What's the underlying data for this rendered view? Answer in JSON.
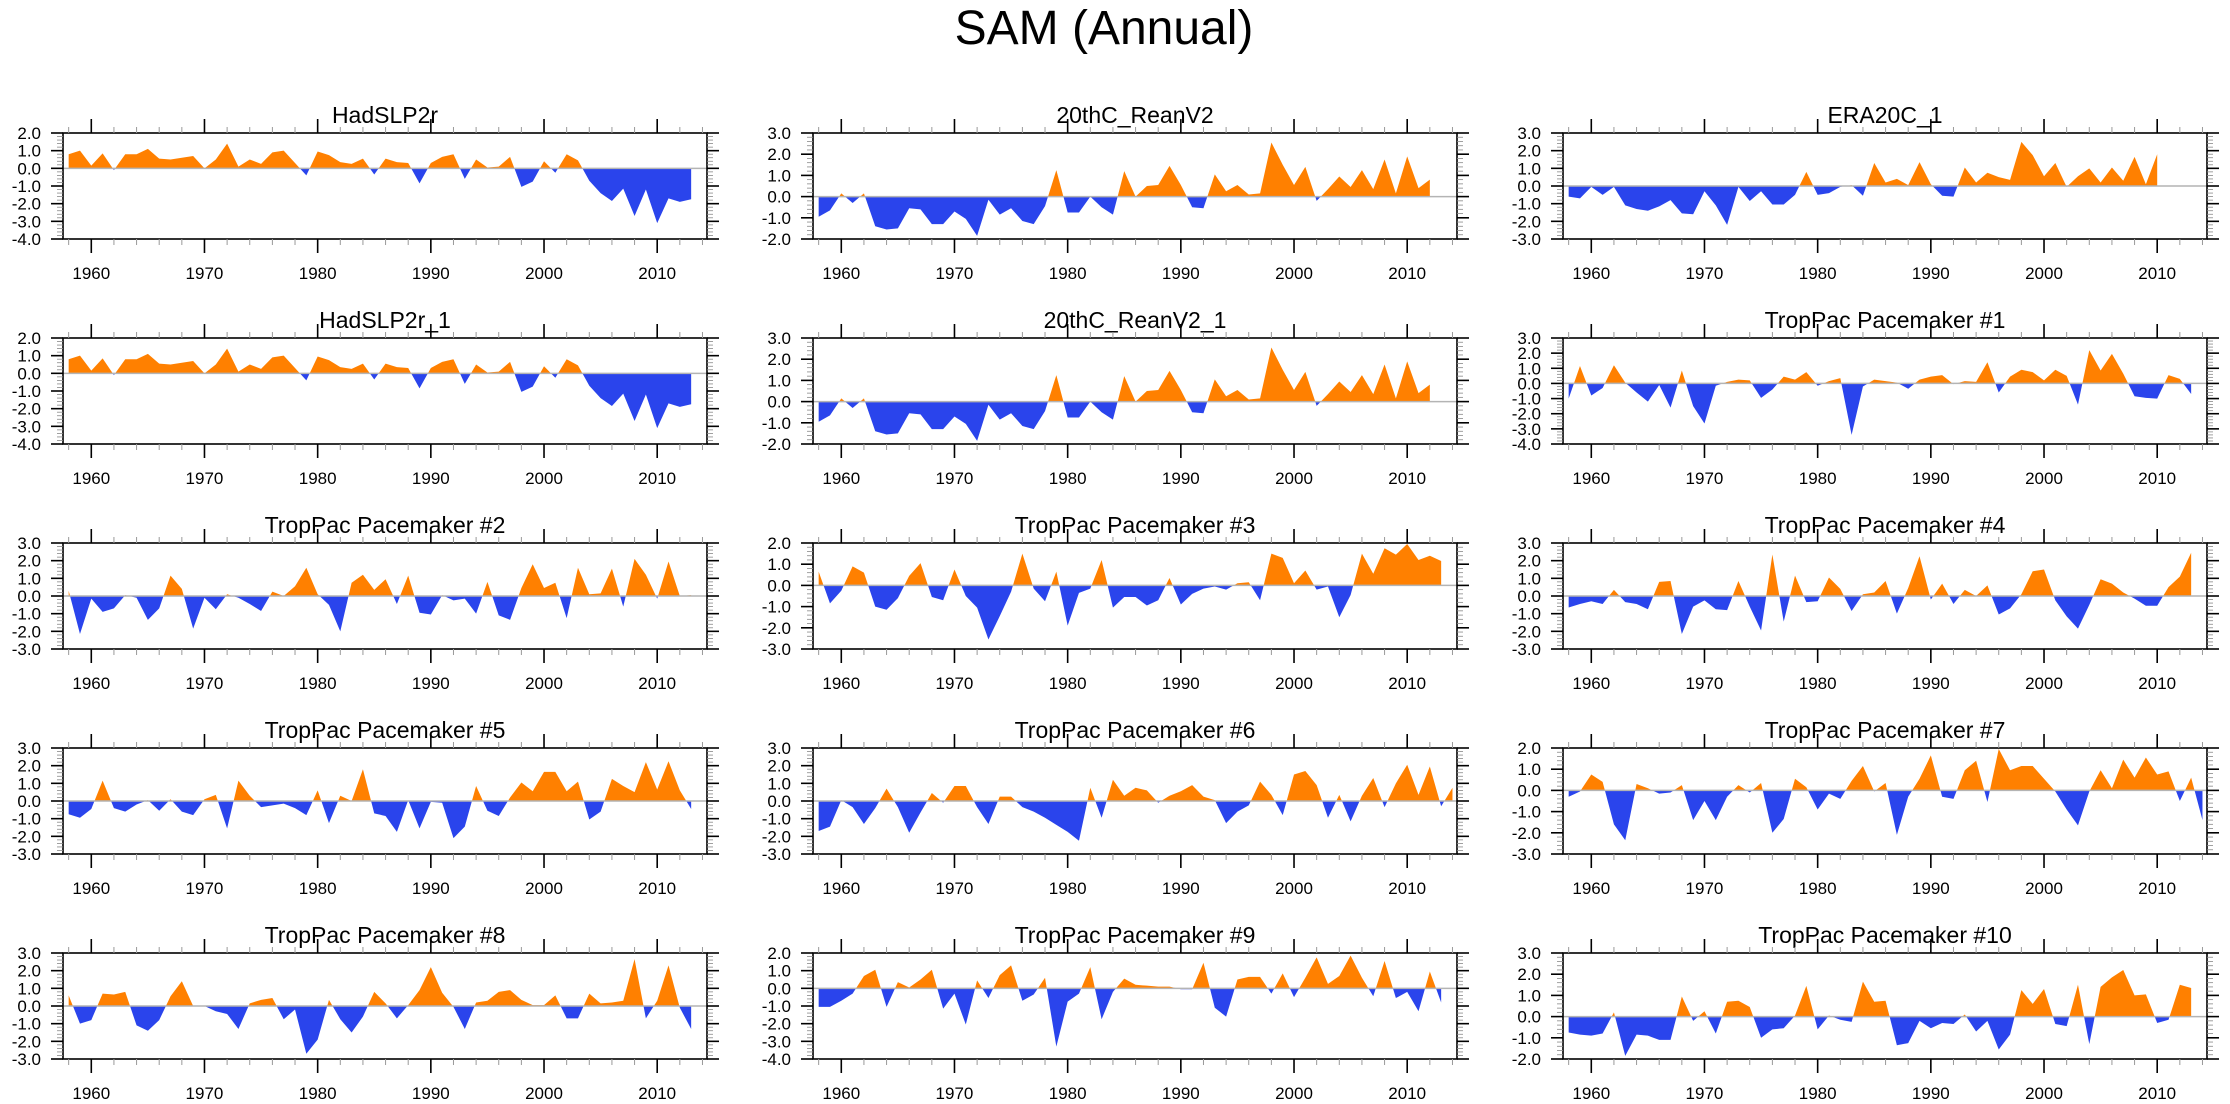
{
  "figure": {
    "title": "SAM (Annual)",
    "colors": {
      "positive": "#ff8000",
      "negative": "#2a44ec",
      "zero_line": "#b4b4b4",
      "axis": "#000000"
    }
  },
  "chart_data": {
    "type": "area",
    "title": "SAM (Annual)",
    "layout": "5 rows x 3 columns",
    "xlabel": "",
    "ylabel": "",
    "grid": false,
    "legend": "none",
    "xlim": [
      1957.5,
      2014.4
    ],
    "xticks": [
      1960,
      1970,
      1980,
      1990,
      2000,
      2010
    ],
    "panels": [
      {
        "title": "HadSLP2r",
        "start_year": 1958,
        "ylim": [
          -4,
          2
        ],
        "yticks": [
          "-4.0",
          "-3.0",
          "-2.0",
          "-1.0",
          "0.0",
          "1.0",
          "2.0"
        ],
        "values": [
          0.8,
          1.0,
          0.15,
          0.85,
          -0.1,
          0.8,
          0.8,
          1.1,
          0.55,
          0.5,
          0.6,
          0.7,
          0.0,
          0.5,
          1.4,
          0.1,
          0.5,
          0.25,
          0.9,
          1.0,
          0.3,
          -0.4,
          0.95,
          0.75,
          0.35,
          0.25,
          0.55,
          -0.35,
          0.55,
          0.35,
          0.3,
          -0.85,
          0.3,
          0.65,
          0.8,
          -0.6,
          0.5,
          0.05,
          0.1,
          0.65,
          -1.05,
          -0.75,
          0.4,
          -0.25,
          0.8,
          0.45,
          -0.7,
          -1.4,
          -1.85,
          -1.15,
          -2.7,
          -1.2,
          -3.1,
          -1.7,
          -1.9,
          -1.75
        ]
      },
      {
        "title": "20thC_ReanV2",
        "start_year": 1958,
        "ylim": [
          -2,
          3
        ],
        "yticks": [
          "-2.0",
          "-1.0",
          "0.0",
          "1.0",
          "2.0",
          "3.0"
        ],
        "values": [
          -0.95,
          -0.65,
          0.15,
          -0.3,
          0.15,
          -1.4,
          -1.55,
          -1.5,
          -0.55,
          -0.6,
          -1.3,
          -1.3,
          -0.7,
          -1.05,
          -1.85,
          -0.15,
          -0.85,
          -0.55,
          -1.15,
          -1.3,
          -0.45,
          1.25,
          -0.75,
          -0.75,
          0.0,
          -0.5,
          -0.85,
          1.2,
          0.0,
          0.5,
          0.55,
          1.45,
          0.55,
          -0.5,
          -0.55,
          1.05,
          0.25,
          0.55,
          0.1,
          0.15,
          2.55,
          1.5,
          0.55,
          1.4,
          -0.2,
          0.35,
          0.95,
          0.45,
          1.25,
          0.35,
          1.75,
          0.15,
          1.9,
          0.4,
          0.8
        ]
      },
      {
        "title": "ERA20C_1",
        "start_year": 1958,
        "ylim": [
          -3,
          3
        ],
        "yticks": [
          "-3.0",
          "-2.0",
          "-1.0",
          "0.0",
          "1.0",
          "2.0",
          "3.0"
        ],
        "values": [
          -0.6,
          -0.7,
          -0.05,
          -0.5,
          -0.05,
          -1.1,
          -1.3,
          -1.4,
          -1.15,
          -0.8,
          -1.55,
          -1.6,
          -0.3,
          -1.1,
          -2.2,
          -0.05,
          -0.85,
          -0.3,
          -1.05,
          -1.05,
          -0.5,
          0.8,
          -0.5,
          -0.4,
          -0.05,
          0.05,
          -0.55,
          1.3,
          0.2,
          0.4,
          0.05,
          1.35,
          0.1,
          -0.55,
          -0.6,
          1.05,
          0.2,
          0.75,
          0.5,
          0.35,
          2.5,
          1.75,
          0.55,
          1.3,
          -0.05,
          0.55,
          1.0,
          0.2,
          1.05,
          0.3,
          1.65,
          0.1,
          1.8
        ]
      },
      {
        "title": "HadSLP2r_1",
        "start_year": 1958,
        "ylim": [
          -4,
          2
        ],
        "yticks": [
          "-4.0",
          "-3.0",
          "-2.0",
          "-1.0",
          "0.0",
          "1.0",
          "2.0"
        ],
        "values": [
          0.8,
          1.0,
          0.15,
          0.85,
          -0.1,
          0.8,
          0.8,
          1.1,
          0.55,
          0.5,
          0.6,
          0.7,
          0.0,
          0.5,
          1.4,
          0.1,
          0.5,
          0.25,
          0.9,
          1.0,
          0.3,
          -0.4,
          0.95,
          0.75,
          0.35,
          0.25,
          0.55,
          -0.35,
          0.55,
          0.35,
          0.3,
          -0.85,
          0.3,
          0.65,
          0.8,
          -0.6,
          0.5,
          0.05,
          0.1,
          0.65,
          -1.05,
          -0.75,
          0.4,
          -0.25,
          0.8,
          0.45,
          -0.7,
          -1.4,
          -1.85,
          -1.15,
          -2.7,
          -1.2,
          -3.1,
          -1.7,
          -1.9,
          -1.75
        ]
      },
      {
        "title": "20thC_ReanV2_1",
        "start_year": 1958,
        "ylim": [
          -2,
          3
        ],
        "yticks": [
          "-2.0",
          "-1.0",
          "0.0",
          "1.0",
          "2.0",
          "3.0"
        ],
        "values": [
          -0.95,
          -0.65,
          0.15,
          -0.3,
          0.15,
          -1.4,
          -1.55,
          -1.5,
          -0.55,
          -0.6,
          -1.3,
          -1.3,
          -0.7,
          -1.05,
          -1.85,
          -0.15,
          -0.85,
          -0.55,
          -1.15,
          -1.3,
          -0.45,
          1.25,
          -0.75,
          -0.75,
          0.0,
          -0.5,
          -0.85,
          1.2,
          0.0,
          0.5,
          0.55,
          1.45,
          0.55,
          -0.5,
          -0.55,
          1.05,
          0.25,
          0.55,
          0.1,
          0.15,
          2.55,
          1.5,
          0.55,
          1.4,
          -0.2,
          0.35,
          0.95,
          0.45,
          1.25,
          0.35,
          1.75,
          0.15,
          1.9,
          0.4,
          0.8
        ]
      },
      {
        "title": "TropPac Pacemaker #1",
        "start_year": 1958,
        "ylim": [
          -4,
          3
        ],
        "yticks": [
          "-4.0",
          "-3.0",
          "-2.0",
          "-1.0",
          "0.0",
          "1.0",
          "2.0",
          "3.0"
        ],
        "values": [
          -1.0,
          1.15,
          -0.8,
          -0.3,
          1.2,
          0.05,
          -0.6,
          -1.2,
          -0.1,
          -1.6,
          0.85,
          -1.5,
          -2.65,
          -0.15,
          0.1,
          0.25,
          0.2,
          -0.95,
          -0.4,
          0.45,
          0.25,
          0.75,
          -0.15,
          0.15,
          0.35,
          -3.4,
          -0.2,
          0.25,
          0.15,
          0.05,
          -0.35,
          0.25,
          0.45,
          0.55,
          -0.05,
          0.15,
          0.1,
          1.4,
          -0.6,
          0.45,
          0.9,
          0.75,
          0.2,
          0.9,
          0.5,
          -1.4,
          2.2,
          0.85,
          1.95,
          0.65,
          -0.85,
          -0.95,
          -1.0,
          0.55,
          0.3,
          -0.7
        ]
      },
      {
        "title": "TropPac Pacemaker #2",
        "start_year": 1958,
        "ylim": [
          -3,
          3
        ],
        "yticks": [
          "-3.0",
          "-2.0",
          "-1.0",
          "0.0",
          "1.0",
          "2.0",
          "3.0"
        ],
        "values": [
          0.3,
          -2.15,
          -0.15,
          -0.9,
          -0.7,
          0.05,
          -0.1,
          -1.35,
          -0.7,
          1.15,
          0.4,
          -1.85,
          -0.1,
          -0.75,
          0.1,
          -0.1,
          -0.45,
          -0.85,
          0.25,
          0.0,
          0.55,
          1.6,
          0.1,
          -0.5,
          -2.0,
          0.75,
          1.2,
          0.35,
          0.95,
          -0.45,
          1.15,
          -0.95,
          -1.05,
          0.05,
          -0.25,
          -0.15,
          -1.0,
          0.8,
          -1.1,
          -1.35,
          0.45,
          1.8,
          0.45,
          0.75,
          -1.25,
          1.6,
          0.1,
          0.15,
          1.55,
          -0.6,
          2.1,
          1.2,
          -0.15,
          1.95,
          0.0,
          0.05
        ]
      },
      {
        "title": "TropPac Pacemaker #3",
        "start_year": 1958,
        "ylim": [
          -3,
          2
        ],
        "yticks": [
          "-3.0",
          "-2.0",
          "-1.0",
          "0.0",
          "1.0",
          "2.0"
        ],
        "values": [
          0.65,
          -0.85,
          -0.25,
          0.9,
          0.6,
          -1.0,
          -1.15,
          -0.6,
          0.45,
          1.05,
          -0.55,
          -0.7,
          0.75,
          -0.5,
          -1.05,
          -2.55,
          -1.45,
          -0.3,
          1.5,
          -0.15,
          -0.75,
          0.65,
          -1.9,
          -0.35,
          -0.15,
          1.2,
          -1.05,
          -0.55,
          -0.55,
          -0.95,
          -0.7,
          0.35,
          -0.9,
          -0.4,
          -0.15,
          -0.05,
          -0.2,
          0.1,
          0.15,
          -0.7,
          1.5,
          1.3,
          0.1,
          0.7,
          -0.2,
          -0.05,
          -1.5,
          -0.45,
          1.5,
          0.55,
          1.75,
          1.45,
          1.95,
          1.2,
          1.4,
          1.15
        ]
      },
      {
        "title": "TropPac Pacemaker #4",
        "start_year": 1958,
        "ylim": [
          -3,
          3
        ],
        "yticks": [
          "-3.0",
          "-2.0",
          "-1.0",
          "0.0",
          "1.0",
          "2.0",
          "3.0"
        ],
        "values": [
          -0.65,
          -0.45,
          -0.3,
          -0.45,
          0.35,
          -0.35,
          -0.45,
          -0.75,
          0.8,
          0.85,
          -2.15,
          -0.6,
          -0.25,
          -0.75,
          -0.8,
          0.85,
          -0.6,
          -1.95,
          2.35,
          -1.45,
          1.15,
          -0.35,
          -0.3,
          1.05,
          0.4,
          -0.85,
          0.1,
          0.2,
          0.85,
          -1.0,
          0.45,
          2.25,
          -0.2,
          0.7,
          -0.45,
          0.35,
          0.0,
          0.6,
          -1.05,
          -0.7,
          0.1,
          1.4,
          1.5,
          -0.25,
          -1.15,
          -1.85,
          -0.5,
          0.95,
          0.7,
          0.2,
          -0.15,
          -0.55,
          -0.55,
          0.5,
          1.1,
          2.45
        ]
      },
      {
        "title": "TropPac Pacemaker #5",
        "start_year": 1958,
        "ylim": [
          -3,
          3
        ],
        "yticks": [
          "-3.0",
          "-2.0",
          "-1.0",
          "0.0",
          "1.0",
          "2.0",
          "3.0"
        ],
        "values": [
          -0.75,
          -0.95,
          -0.45,
          1.15,
          -0.4,
          -0.6,
          -0.2,
          0.05,
          -0.55,
          0.1,
          -0.6,
          -0.8,
          0.1,
          0.35,
          -1.55,
          1.15,
          0.3,
          -0.35,
          -0.25,
          -0.15,
          -0.4,
          -0.8,
          0.6,
          -1.25,
          0.3,
          0.0,
          1.8,
          -0.7,
          -0.85,
          -1.75,
          0.05,
          -1.55,
          -0.05,
          -0.1,
          -2.1,
          -1.45,
          0.85,
          -0.55,
          -0.85,
          0.2,
          1.05,
          0.55,
          1.65,
          1.65,
          0.55,
          1.1,
          -1.05,
          -0.6,
          1.25,
          0.85,
          0.5,
          2.2,
          0.65,
          2.25,
          0.6,
          -0.45
        ]
      },
      {
        "title": "TropPac Pacemaker #6",
        "start_year": 1958,
        "ylim": [
          -3,
          3
        ],
        "yticks": [
          "-3.0",
          "-2.0",
          "-1.0",
          "0.0",
          "1.0",
          "2.0",
          "3.0"
        ],
        "values": [
          -1.7,
          -1.45,
          0.05,
          -0.35,
          -1.3,
          -0.4,
          0.7,
          -0.35,
          -1.8,
          -0.65,
          0.45,
          -0.1,
          0.85,
          0.85,
          -0.35,
          -1.3,
          0.25,
          0.25,
          -0.35,
          -0.6,
          -0.95,
          -1.35,
          -1.75,
          -2.25,
          0.75,
          -0.95,
          1.2,
          0.3,
          0.75,
          0.6,
          -0.1,
          0.3,
          0.55,
          0.9,
          0.25,
          0.05,
          -1.25,
          -0.6,
          -0.25,
          1.1,
          0.35,
          -0.8,
          1.5,
          1.7,
          0.9,
          -0.95,
          0.35,
          -1.15,
          0.3,
          1.3,
          -0.35,
          1.0,
          2.05,
          0.35,
          1.95,
          -0.3,
          0.75
        ]
      },
      {
        "title": "TropPac Pacemaker #7",
        "start_year": 1958,
        "ylim": [
          -3,
          2
        ],
        "yticks": [
          "-3.0",
          "-2.0",
          "-1.0",
          "0.0",
          "1.0",
          "2.0"
        ],
        "values": [
          -0.3,
          -0.05,
          0.75,
          0.4,
          -1.6,
          -2.35,
          0.3,
          0.1,
          -0.15,
          -0.1,
          0.25,
          -1.4,
          -0.5,
          -1.4,
          -0.3,
          0.25,
          -0.1,
          0.35,
          -2.0,
          -1.35,
          0.55,
          0.15,
          -0.9,
          -0.15,
          -0.4,
          0.45,
          1.15,
          -0.05,
          0.35,
          -2.1,
          -0.3,
          0.55,
          1.65,
          -0.3,
          -0.4,
          0.95,
          1.4,
          -0.55,
          1.95,
          0.95,
          1.15,
          1.15,
          0.55,
          -0.05,
          -0.9,
          -1.65,
          -0.05,
          0.95,
          0.1,
          1.45,
          0.6,
          1.55,
          0.75,
          0.9,
          -0.5,
          0.6,
          -1.4
        ]
      },
      {
        "title": "TropPac Pacemaker #8",
        "start_year": 1958,
        "ylim": [
          -3,
          3
        ],
        "yticks": [
          "-3.0",
          "-2.0",
          "-1.0",
          "0.0",
          "1.0",
          "2.0",
          "3.0"
        ],
        "values": [
          0.6,
          -1.0,
          -0.8,
          0.7,
          0.65,
          0.8,
          -1.1,
          -1.4,
          -0.8,
          0.55,
          1.4,
          0.0,
          0.0,
          -0.3,
          -0.45,
          -1.3,
          0.15,
          0.35,
          0.45,
          -0.75,
          -0.2,
          -2.7,
          -1.9,
          0.35,
          -0.75,
          -1.5,
          -0.6,
          0.8,
          0.15,
          -0.7,
          0.05,
          0.9,
          2.2,
          0.75,
          -0.05,
          -1.3,
          0.2,
          0.3,
          0.8,
          0.9,
          0.35,
          0.05,
          0.05,
          0.6,
          -0.7,
          -0.7,
          0.7,
          0.15,
          0.2,
          0.3,
          2.65,
          -0.7,
          0.3,
          2.3,
          -0.1,
          -1.3
        ]
      },
      {
        "title": "TropPac Pacemaker #9",
        "start_year": 1958,
        "ylim": [
          -4,
          2
        ],
        "yticks": [
          "-4.0",
          "-3.0",
          "-2.0",
          "-1.0",
          "0.0",
          "1.0",
          "2.0"
        ],
        "values": [
          -1.05,
          -1.05,
          -0.7,
          -0.3,
          0.7,
          1.05,
          -1.05,
          0.35,
          0.05,
          0.5,
          1.05,
          -1.15,
          -0.3,
          -2.05,
          0.45,
          -0.55,
          0.75,
          1.3,
          -0.7,
          -0.35,
          0.6,
          -3.3,
          -0.75,
          -0.3,
          1.2,
          -1.75,
          -0.2,
          0.55,
          0.2,
          0.15,
          0.1,
          0.1,
          -0.05,
          -0.05,
          1.45,
          -1.1,
          -1.6,
          0.5,
          0.65,
          0.65,
          -0.3,
          0.85,
          -0.5,
          0.6,
          1.75,
          0.25,
          0.7,
          1.85,
          0.6,
          -0.45,
          1.55,
          -0.55,
          -0.2,
          -1.3,
          0.95,
          -0.8
        ]
      },
      {
        "title": "TropPac Pacemaker #10",
        "start_year": 1958,
        "ylim": [
          -2,
          3
        ],
        "yticks": [
          "-2.0",
          "-1.0",
          "0.0",
          "1.0",
          "2.0",
          "3.0"
        ],
        "values": [
          -0.75,
          -0.85,
          -0.9,
          -0.8,
          0.2,
          -1.85,
          -0.85,
          -0.9,
          -1.1,
          -1.1,
          0.95,
          -0.2,
          0.25,
          -0.8,
          0.7,
          0.75,
          0.45,
          -1.0,
          -0.6,
          -0.55,
          0.05,
          1.45,
          -0.6,
          0.05,
          -0.15,
          -0.25,
          1.65,
          0.7,
          0.75,
          -1.35,
          -1.25,
          -0.2,
          -0.55,
          -0.3,
          -0.35,
          0.1,
          -0.7,
          -0.2,
          -1.55,
          -0.85,
          1.25,
          0.6,
          1.3,
          -0.35,
          -0.45,
          1.5,
          -1.3,
          1.4,
          1.85,
          2.2,
          1.0,
          1.05,
          -0.3,
          -0.15,
          1.5,
          1.35
        ]
      }
    ]
  }
}
